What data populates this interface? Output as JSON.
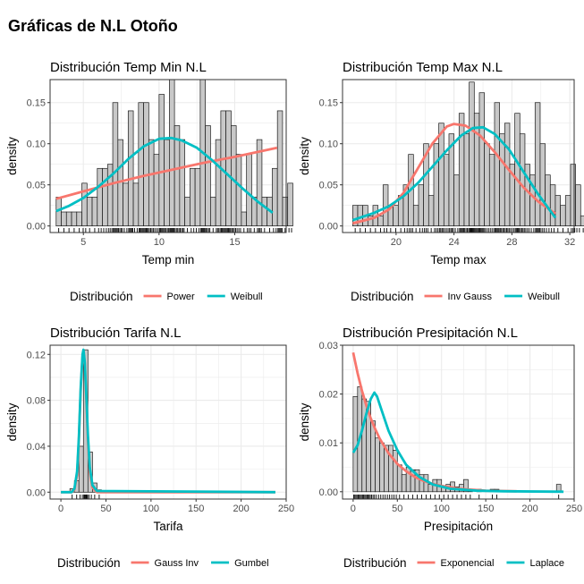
{
  "page_title": "Gráficas de N.L Otoño",
  "colors": {
    "series_a": "#F8766D",
    "series_b": "#00BFC4",
    "bar_fill": "#C8C8C8",
    "bar_stroke": "#1a1a1a",
    "grid": "#EBEBEB",
    "panel_border": "#333333"
  },
  "chart_data": [
    {
      "type": "bar",
      "title": "Distribución Temp Min N.L",
      "xlabel": "Temp min",
      "ylabel": "density",
      "xlim": [
        2.8,
        18.4
      ],
      "ylim": [
        -0.008,
        0.178
      ],
      "xticks": [
        5,
        10,
        15
      ],
      "yticks": [
        0.0,
        0.05,
        0.1,
        0.15
      ],
      "ytick_labels": [
        "0.00",
        "0.05",
        "0.10",
        "0.15"
      ],
      "bins": {
        "start": 3.2,
        "width": 0.34,
        "values": [
          0.035,
          0.017,
          0.017,
          0.017,
          0.017,
          0.052,
          0.035,
          0.035,
          0.07,
          0.07,
          0.075,
          0.15,
          0.105,
          0.052,
          0.14,
          0.052,
          0.15,
          0.15,
          0.105,
          0.087,
          0.16,
          0.105,
          0.178,
          0.122,
          0.105,
          0.035,
          0.07,
          0.07,
          0.178,
          0.122,
          0.035,
          0.105,
          0.14,
          0.14,
          0.122,
          0.087,
          0.017,
          0.087,
          0.035,
          0.105,
          0.035,
          0.035,
          0.07,
          0.14,
          0.035,
          0.052
        ]
      },
      "series": [
        {
          "name": "Power",
          "color": "#F8766D",
          "points": [
            [
              3.2,
              0.033
            ],
            [
              5,
              0.042
            ],
            [
              7,
              0.052
            ],
            [
              9,
              0.061
            ],
            [
              11,
              0.069
            ],
            [
              13,
              0.077
            ],
            [
              15,
              0.084
            ],
            [
              17.8,
              0.095
            ]
          ]
        },
        {
          "name": "Weibull",
          "color": "#00BFC4",
          "points": [
            [
              3.2,
              0.018
            ],
            [
              4,
              0.024
            ],
            [
              5,
              0.034
            ],
            [
              6,
              0.048
            ],
            [
              7,
              0.064
            ],
            [
              8,
              0.082
            ],
            [
              9,
              0.097
            ],
            [
              10,
              0.106
            ],
            [
              10.8,
              0.107
            ],
            [
              11.5,
              0.104
            ],
            [
              12.5,
              0.095
            ],
            [
              13.5,
              0.08
            ],
            [
              14.5,
              0.063
            ],
            [
              15.5,
              0.046
            ],
            [
              16.5,
              0.03
            ],
            [
              17.5,
              0.016
            ]
          ]
        }
      ],
      "legend": {
        "title": "Distribución",
        "position": "bottom",
        "items": [
          "Power",
          "Weibull"
        ]
      }
    },
    {
      "type": "bar",
      "title": "Distribución Temp Max N.L",
      "xlabel": "Temp max",
      "ylabel": "density",
      "xlim": [
        16.3,
        32.3
      ],
      "ylim": [
        -0.008,
        0.178
      ],
      "xticks": [
        20,
        24,
        28,
        32
      ],
      "yticks": [
        0.0,
        0.05,
        0.1,
        0.15
      ],
      "ytick_labels": [
        "0.00",
        "0.05",
        "0.10",
        "0.15"
      ],
      "bins": {
        "start": 17.0,
        "width": 0.35,
        "values": [
          0.025,
          0.025,
          0.025,
          0.012,
          0.025,
          0.012,
          0.05,
          0.025,
          0.025,
          0.037,
          0.05,
          0.087,
          0.025,
          0.05,
          0.1,
          0.037,
          0.1,
          0.125,
          0.087,
          0.112,
          0.062,
          0.137,
          0.112,
          0.175,
          0.137,
          0.162,
          0.1,
          0.087,
          0.15,
          0.112,
          0.125,
          0.075,
          0.137,
          0.112,
          0.075,
          0.062,
          0.15,
          0.1,
          0.062,
          0.05,
          0.037,
          0.025,
          0.037,
          0.075,
          0.05,
          0.012
        ]
      },
      "series": [
        {
          "name": "Inv Gauss",
          "color": "#F8766D",
          "points": [
            [
              17.0,
              0.003
            ],
            [
              18.5,
              0.01
            ],
            [
              19.5,
              0.02
            ],
            [
              20.5,
              0.04
            ],
            [
              21.5,
              0.07
            ],
            [
              22.5,
              0.1
            ],
            [
              23.5,
              0.121
            ],
            [
              24.0,
              0.124
            ],
            [
              24.8,
              0.122
            ],
            [
              25.8,
              0.11
            ],
            [
              26.8,
              0.09
            ],
            [
              27.8,
              0.068
            ],
            [
              28.8,
              0.047
            ],
            [
              29.8,
              0.03
            ],
            [
              31.0,
              0.015
            ]
          ]
        },
        {
          "name": "Weibull",
          "color": "#00BFC4",
          "points": [
            [
              17.0,
              0.007
            ],
            [
              18.5,
              0.016
            ],
            [
              19.5,
              0.024
            ],
            [
              20.5,
              0.036
            ],
            [
              21.5,
              0.052
            ],
            [
              22.5,
              0.072
            ],
            [
              23.5,
              0.092
            ],
            [
              24.5,
              0.11
            ],
            [
              25.3,
              0.119
            ],
            [
              26.0,
              0.12
            ],
            [
              26.8,
              0.112
            ],
            [
              27.8,
              0.093
            ],
            [
              28.8,
              0.066
            ],
            [
              29.8,
              0.039
            ],
            [
              31.0,
              0.01
            ]
          ]
        }
      ],
      "legend": {
        "title": "Distribución",
        "position": "bottom",
        "items": [
          "Inv Gauss",
          "Weibull"
        ]
      }
    },
    {
      "type": "bar",
      "title": "Distribución Tarifa N.L",
      "xlabel": "Tarifa",
      "ylabel": "density",
      "xlim": [
        -12,
        250
      ],
      "ylim": [
        -0.006,
        0.128
      ],
      "xticks": [
        0,
        50,
        100,
        150,
        200,
        250
      ],
      "yticks": [
        0.0,
        0.04,
        0.08,
        0.12
      ],
      "ytick_labels": [
        "0.00",
        "0.04",
        "0.08",
        "0.12"
      ],
      "bins": {
        "start": 10,
        "width": 5,
        "values": [
          0.003,
          0.01,
          0.04,
          0.124,
          0.035,
          0.008,
          0.002
        ]
      },
      "series": [
        {
          "name": "Gauss Inv",
          "color": "#F8766D",
          "points": [
            [
              0,
              0.0
            ],
            [
              12,
              0.0
            ],
            [
              15,
              0.002
            ],
            [
              18,
              0.015
            ],
            [
              20,
              0.045
            ],
            [
              22,
              0.09
            ],
            [
              24,
              0.118
            ],
            [
              25,
              0.123
            ],
            [
              26.5,
              0.112
            ],
            [
              28,
              0.085
            ],
            [
              30,
              0.045
            ],
            [
              32,
              0.018
            ],
            [
              35,
              0.004
            ],
            [
              40,
              0.0
            ],
            [
              238,
              0.0
            ]
          ]
        },
        {
          "name": "Gumbel",
          "color": "#00BFC4",
          "points": [
            [
              0,
              0.0
            ],
            [
              12,
              0.0
            ],
            [
              15,
              0.003
            ],
            [
              18,
              0.018
            ],
            [
              20,
              0.048
            ],
            [
              22,
              0.092
            ],
            [
              24,
              0.12
            ],
            [
              25,
              0.124
            ],
            [
              26.5,
              0.113
            ],
            [
              28,
              0.088
            ],
            [
              30,
              0.05
            ],
            [
              32,
              0.022
            ],
            [
              35,
              0.006
            ],
            [
              40,
              0.001
            ],
            [
              238,
              0.0
            ]
          ]
        }
      ],
      "legend": {
        "title": "Distribución",
        "position": "bottom",
        "items": [
          "Gauss Inv",
          "Gumbel"
        ]
      }
    },
    {
      "type": "bar",
      "title": "Distribución Presipitación N.L",
      "xlabel": "Presipitación",
      "ylabel": "density",
      "xlim": [
        -12,
        250
      ],
      "ylim": [
        -0.0015,
        0.03
      ],
      "xticks": [
        0,
        50,
        100,
        150,
        200,
        250
      ],
      "yticks": [
        0.0,
        0.01,
        0.02,
        0.03
      ],
      "ytick_labels": [
        "0.00",
        "0.01",
        "0.02",
        "0.03"
      ],
      "bins": {
        "start": 0,
        "width": 5,
        "values": [
          0.0195,
          0.0215,
          0.019,
          0.0185,
          0.0145,
          0.011,
          0.01,
          0.0095,
          0.0095,
          0.0085,
          0.0055,
          0.0035,
          0.005,
          0.0045,
          0.0045,
          0.0035,
          0.0035,
          0.0015,
          0.0025,
          0.0025,
          0.001,
          0.0015,
          0.002,
          0.001,
          0.0015,
          0.0025,
          0.0005,
          0.0,
          0.0005,
          0.0,
          0.0,
          0.0005,
          0.0005,
          0.0,
          0.0,
          0.0,
          0.0,
          0.0,
          0.0,
          0.0,
          0.0,
          0.0,
          0.0,
          0.0,
          0.0,
          0.0,
          0.0015
        ]
      },
      "series": [
        {
          "name": "Exponencial",
          "color": "#F8766D",
          "points": [
            [
              0,
              0.0285
            ],
            [
              5,
              0.0243
            ],
            [
              10,
              0.0207
            ],
            [
              15,
              0.0176
            ],
            [
              20,
              0.015
            ],
            [
              25,
              0.0128
            ],
            [
              30,
              0.0109
            ],
            [
              40,
              0.0079
            ],
            [
              50,
              0.0057
            ],
            [
              60,
              0.0042
            ],
            [
              70,
              0.003
            ],
            [
              80,
              0.0022
            ],
            [
              90,
              0.0016
            ],
            [
              100,
              0.0012
            ],
            [
              120,
              0.0006
            ],
            [
              150,
              0.0002
            ],
            [
              185,
              0.0001
            ]
          ]
        },
        {
          "name": "Laplace",
          "color": "#00BFC4",
          "points": [
            [
              0,
              0.008
            ],
            [
              5,
              0.0095
            ],
            [
              10,
              0.0125
            ],
            [
              15,
              0.016
            ],
            [
              20,
              0.019
            ],
            [
              24,
              0.0203
            ],
            [
              27,
              0.0195
            ],
            [
              32,
              0.0168
            ],
            [
              40,
              0.0125
            ],
            [
              50,
              0.0085
            ],
            [
              60,
              0.0055
            ],
            [
              75,
              0.003
            ],
            [
              90,
              0.0015
            ],
            [
              110,
              0.0006
            ],
            [
              140,
              0.0002
            ],
            [
              170,
              0.0001
            ],
            [
              238,
              0.0
            ]
          ]
        }
      ],
      "legend": {
        "title": "Distribución",
        "position": "bottom",
        "items": [
          "Exponencial",
          "Laplace"
        ]
      }
    }
  ]
}
